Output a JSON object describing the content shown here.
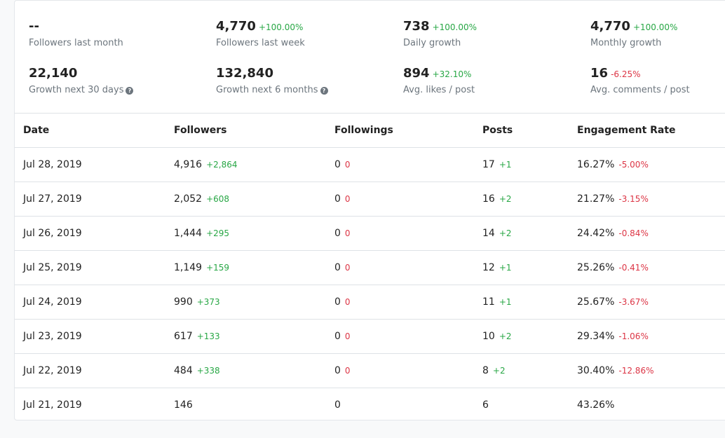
{
  "stats": [
    {
      "value": "--",
      "change": "",
      "change_color": "pos",
      "label": "Followers last month",
      "help": false
    },
    {
      "value": "4,770",
      "change": "+100.00%",
      "change_color": "pos",
      "label": "Followers last week",
      "help": false
    },
    {
      "value": "738",
      "change": "+100.00%",
      "change_color": "pos",
      "label": "Daily growth",
      "help": false
    },
    {
      "value": "4,770",
      "change": "+100.00%",
      "change_color": "pos",
      "label": "Monthly growth",
      "help": false
    },
    {
      "value": "22,140",
      "change": "",
      "change_color": "pos",
      "label": "Growth next 30 days",
      "help": true
    },
    {
      "value": "132,840",
      "change": "",
      "change_color": "pos",
      "label": "Growth next 6 months",
      "help": true
    },
    {
      "value": "894",
      "change": "+32.10%",
      "change_color": "pos",
      "label": "Avg. likes / post",
      "help": false
    },
    {
      "value": "16",
      "change": "-6.25%",
      "change_color": "neg",
      "label": "Avg. comments / post",
      "help": false
    }
  ],
  "table": {
    "headers": [
      "Date",
      "Followers",
      "Followings",
      "Posts",
      "Engagement Rate"
    ],
    "rows": [
      {
        "date": "Jul 28, 2019",
        "followers": "4,916",
        "followers_d": "+2,864",
        "followings": "0",
        "followings_d": "0",
        "posts": "17",
        "posts_d": "+1",
        "er": "16.27%",
        "er_d": "-5.00%"
      },
      {
        "date": "Jul 27, 2019",
        "followers": "2,052",
        "followers_d": "+608",
        "followings": "0",
        "followings_d": "0",
        "posts": "16",
        "posts_d": "+2",
        "er": "21.27%",
        "er_d": "-3.15%"
      },
      {
        "date": "Jul 26, 2019",
        "followers": "1,444",
        "followers_d": "+295",
        "followings": "0",
        "followings_d": "0",
        "posts": "14",
        "posts_d": "+2",
        "er": "24.42%",
        "er_d": "-0.84%"
      },
      {
        "date": "Jul 25, 2019",
        "followers": "1,149",
        "followers_d": "+159",
        "followings": "0",
        "followings_d": "0",
        "posts": "12",
        "posts_d": "+1",
        "er": "25.26%",
        "er_d": "-0.41%"
      },
      {
        "date": "Jul 24, 2019",
        "followers": "990",
        "followers_d": "+373",
        "followings": "0",
        "followings_d": "0",
        "posts": "11",
        "posts_d": "+1",
        "er": "25.67%",
        "er_d": "-3.67%"
      },
      {
        "date": "Jul 23, 2019",
        "followers": "617",
        "followers_d": "+133",
        "followings": "0",
        "followings_d": "0",
        "posts": "10",
        "posts_d": "+2",
        "er": "29.34%",
        "er_d": "-1.06%"
      },
      {
        "date": "Jul 22, 2019",
        "followers": "484",
        "followers_d": "+338",
        "followings": "0",
        "followings_d": "0",
        "posts": "8",
        "posts_d": "+2",
        "er": "30.40%",
        "er_d": "-12.86%"
      },
      {
        "date": "Jul 21, 2019",
        "followers": "146",
        "followers_d": "",
        "followings": "0",
        "followings_d": "",
        "posts": "6",
        "posts_d": "",
        "er": "43.26%",
        "er_d": ""
      }
    ]
  },
  "colors": {
    "positive": "#28a745",
    "negative": "#dc3545",
    "help_icon": "question-circle-icon"
  }
}
